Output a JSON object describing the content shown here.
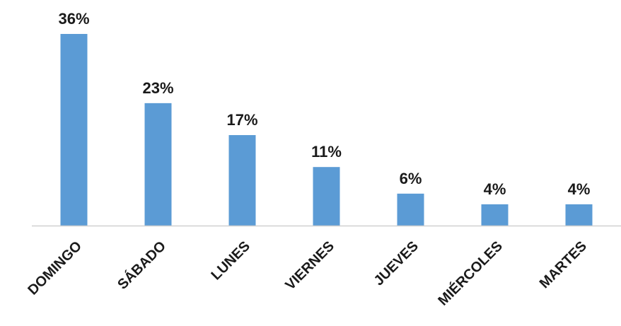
{
  "chart_data": {
    "type": "bar",
    "categories": [
      "DOMINGO",
      "SÁBADO",
      "LUNES",
      "VIERNES",
      "JUEVES",
      "MIÉRCOLES",
      "MARTES"
    ],
    "values": [
      36,
      23,
      17,
      11,
      6,
      4,
      4
    ],
    "value_labels": [
      "36%",
      "23%",
      "17%",
      "11%",
      "6%",
      "4%",
      "4%"
    ],
    "unit": "%",
    "ylim": [
      0,
      36
    ],
    "grid": false,
    "legend": "none",
    "colors": {
      "bar": "#5b9bd5"
    }
  }
}
